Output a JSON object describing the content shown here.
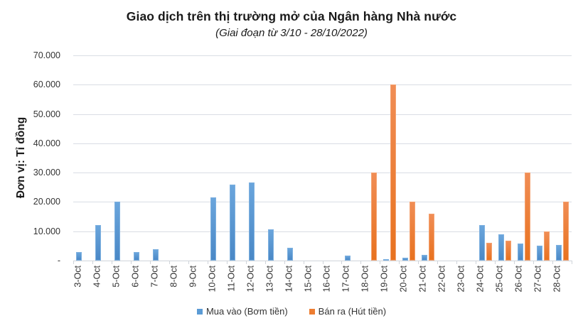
{
  "chart_data": {
    "type": "bar",
    "title": "Giao dịch trên thị trường mở của Ngân hàng Nhà nước",
    "subtitle": "(Giai đoạn từ 3/10 - 28/10/2022)",
    "xlabel": "",
    "ylabel": "Đơn vị: Tỉ đồng",
    "ylim": [
      0,
      70000
    ],
    "yticks": [
      "-",
      "10.000",
      "20.000",
      "30.000",
      "40.000",
      "50.000",
      "60.000",
      "70.000"
    ],
    "ytick_values": [
      0,
      10000,
      20000,
      30000,
      40000,
      50000,
      60000,
      70000
    ],
    "grid": true,
    "legend_position": "bottom",
    "categories": [
      "3-Oct",
      "4-Oct",
      "5-Oct",
      "6-Oct",
      "7-Oct",
      "8-Oct",
      "9-Oct",
      "10-Oct",
      "11-Oct",
      "12-Oct",
      "13-Oct",
      "14-Oct",
      "15-Oct",
      "16-Oct",
      "17-Oct",
      "18-Oct",
      "19-Oct",
      "20-Oct",
      "21-Oct",
      "22-Oct",
      "23-Oct",
      "24-Oct",
      "25-Oct",
      "26-Oct",
      "27-Oct",
      "28-Oct"
    ],
    "series": [
      {
        "name": "Mua vào (Bơm tiền)",
        "color": "#5B9BD5",
        "values": [
          3000,
          12000,
          20000,
          2800,
          3800,
          0,
          0,
          21500,
          26000,
          26600,
          10600,
          4400,
          0,
          0,
          1800,
          0,
          400,
          1000,
          2000,
          0,
          0,
          12000,
          9000,
          5900,
          5000,
          5300
        ]
      },
      {
        "name": "Bán ra (Hút tiền)",
        "color": "#ED7D31",
        "values": [
          0,
          0,
          0,
          0,
          0,
          0,
          0,
          0,
          0,
          0,
          0,
          0,
          0,
          0,
          0,
          30000,
          60000,
          20000,
          16000,
          0,
          0,
          6000,
          6900,
          30000,
          10000,
          20000
        ]
      }
    ]
  },
  "legend": {
    "items": [
      {
        "label": "Mua vào (Bơm tiền)",
        "color": "#5B9BD5"
      },
      {
        "label": "Bán ra (Hút tiền)",
        "color": "#ED7D31"
      }
    ]
  }
}
